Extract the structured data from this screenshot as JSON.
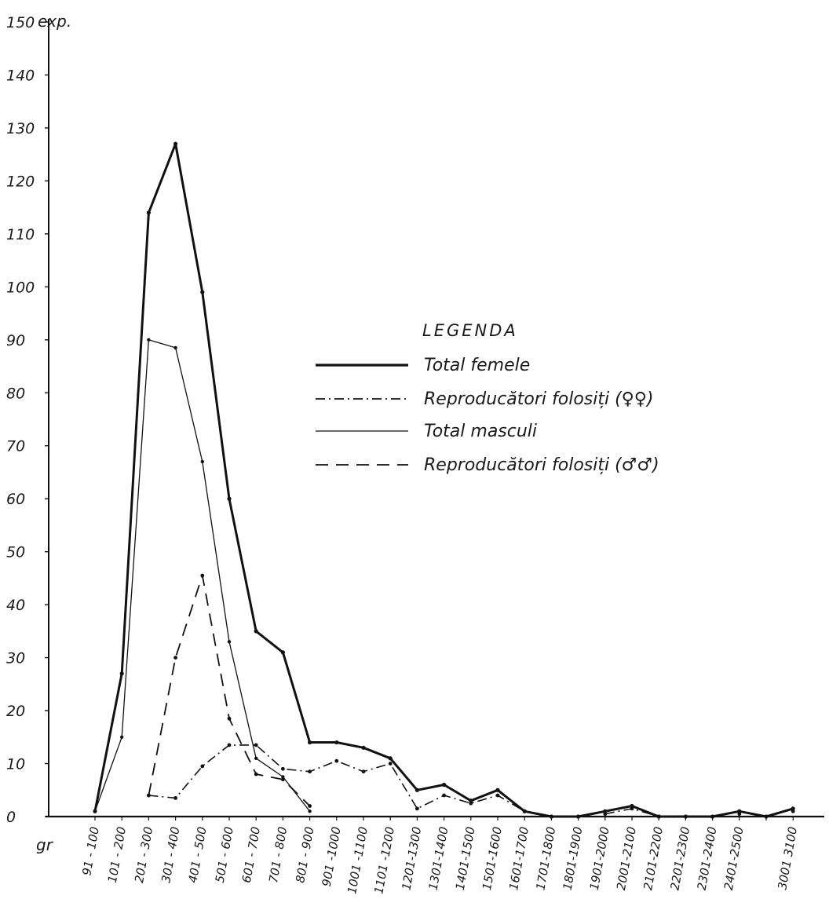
{
  "chart_data": {
    "type": "line",
    "title": "",
    "xlabel": "gr",
    "ylabel": "exp.",
    "ylim": [
      0,
      150
    ],
    "yticks": [
      0,
      10,
      20,
      30,
      40,
      50,
      60,
      70,
      80,
      90,
      100,
      110,
      120,
      130,
      140,
      150
    ],
    "ytick_labels": [
      "0",
      "10",
      "20",
      "30",
      "40",
      "50",
      "60",
      "70",
      "80",
      "90",
      "100",
      "110",
      "120",
      "130",
      "140",
      "150"
    ],
    "categories": [
      "91 - 100",
      "101 - 200",
      "201 - 300",
      "301 - 400",
      "401 - 500",
      "501 - 600",
      "601 - 700",
      "701 - 800",
      "801 - 900",
      "901 -1000",
      "1001 -1100",
      "1101 -1200",
      "1201-1300",
      "1301-1400",
      "1401-1500",
      "1501-1600",
      "1601-1700",
      "1701-1800",
      "1801-1900",
      "1901-2000",
      "2001-2100",
      "2101-2200",
      "2201-2300",
      "2301-2400",
      "2401-2500",
      "",
      "3001 3100"
    ],
    "legend": {
      "title": "LEGENDA",
      "position": "right",
      "entries": [
        "Total femele",
        "Reproducători folosiți (♀♀)",
        "Total masculi",
        "Reproducători folosiți (♂♂)"
      ]
    },
    "grid": false,
    "series": [
      {
        "name": "Total femele",
        "style": "solid-thick",
        "values": [
          1,
          27,
          114,
          127,
          99,
          60,
          35,
          31,
          14,
          14,
          13,
          11,
          5,
          6,
          3,
          5,
          1,
          0,
          0,
          1,
          2,
          0,
          0,
          0,
          1,
          0,
          1.5
        ]
      },
      {
        "name": "Reproducători folosiți (♀♀)",
        "style": "dash-dot",
        "values": [
          null,
          null,
          4,
          3.5,
          9.5,
          13.5,
          13.5,
          9,
          8.5,
          10.5,
          8.5,
          10,
          1.5,
          4,
          2.5,
          4,
          1,
          null,
          null,
          0.5,
          1.5,
          0,
          null,
          null,
          0.5,
          null,
          1
        ]
      },
      {
        "name": "Total masculi",
        "style": "solid-thin",
        "values": [
          1,
          15,
          90,
          88.5,
          67,
          33,
          11,
          7.5,
          1,
          null,
          null,
          null,
          null,
          null,
          null,
          null,
          null,
          null,
          null,
          null,
          null,
          null,
          null,
          null,
          null,
          null,
          null
        ]
      },
      {
        "name": "Reproducători folosiți (♂♂)",
        "style": "dashed",
        "values": [
          null,
          null,
          4,
          30,
          45.5,
          18.5,
          8,
          7,
          2,
          null,
          null,
          null,
          null,
          null,
          null,
          null,
          null,
          null,
          null,
          null,
          null,
          null,
          null,
          null,
          null,
          null,
          null
        ]
      }
    ]
  }
}
